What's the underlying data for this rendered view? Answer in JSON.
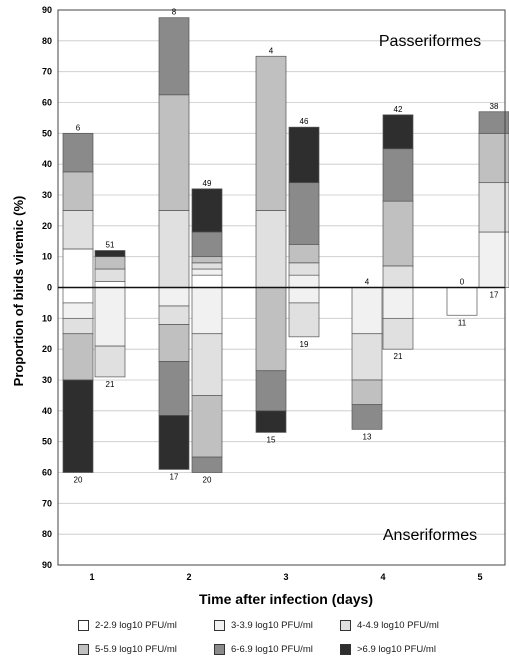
{
  "chart_data": {
    "type": "bar",
    "subtype": "stacked-diverging",
    "top_panel_label": "Passeriformes",
    "bottom_panel_label": "Anseriformes",
    "xlabel": "Time after infection (days)",
    "ylabel": "Proportion of birds viremic (%)",
    "ylim": [
      -90,
      90
    ],
    "yticks": [
      "90",
      "80",
      "70",
      "60",
      "50",
      "40",
      "30",
      "20",
      "10",
      "0",
      "10",
      "20",
      "30",
      "40",
      "50",
      "60",
      "70",
      "80",
      "90"
    ],
    "categories": [
      "1",
      "2",
      "3",
      "4",
      "5"
    ],
    "legend": [
      {
        "label": "2-2.9 log10 PFU/ml",
        "color": "#ffffff"
      },
      {
        "label": "3-3.9 log10 PFU/ml",
        "color": "#f1f1f1"
      },
      {
        "label": "4-4.9 log10 PFU/ml",
        "color": "#e0e0e0"
      },
      {
        "label": "5-5.9 log10 PFU/ml",
        "color": "#c0c0c0"
      },
      {
        "label": "6-6.9 log10 PFU/ml",
        "color": "#8a8a8a"
      },
      {
        "label": ">6.9 log10 PFU/ml",
        "color": "#2e2e2e"
      }
    ],
    "bars": [
      {
        "day": "1",
        "n_top": "6",
        "n_bottom": "20",
        "top": [
          12.5,
          0,
          12.5,
          12.5,
          12.5,
          0
        ],
        "bottom": [
          5,
          5,
          5,
          15,
          0,
          30
        ]
      },
      {
        "day": "1",
        "n_top": "51",
        "n_bottom": "21",
        "top": [
          2,
          0,
          4,
          4,
          0,
          2
        ],
        "bottom": [
          0,
          19,
          10,
          0,
          0,
          0
        ]
      },
      {
        "day": "2",
        "n_top": "8",
        "n_bottom": "17",
        "top": [
          0,
          0,
          25,
          37.5,
          25,
          0
        ],
        "bottom": [
          0,
          6,
          6,
          12,
          17.5,
          17.5
        ]
      },
      {
        "day": "2",
        "n_top": "49",
        "n_bottom": "20",
        "top": [
          4,
          2,
          2,
          2,
          8,
          14
        ],
        "bottom": [
          0,
          15,
          20,
          20,
          5,
          0
        ]
      },
      {
        "day": "3",
        "n_top": "4",
        "n_bottom": "15",
        "top": [
          0,
          0,
          25,
          50,
          0,
          0
        ],
        "bottom": [
          0,
          0,
          0,
          27,
          13,
          7
        ]
      },
      {
        "day": "3",
        "n_top": "46",
        "n_bottom": "19",
        "top": [
          0,
          4,
          4,
          6,
          20,
          18
        ],
        "bottom": [
          0,
          5,
          11,
          0,
          0,
          0
        ]
      },
      {
        "day": "4",
        "n_top": "4",
        "n_bottom": "13",
        "top": [
          0,
          0,
          0,
          0,
          0,
          0
        ],
        "bottom": [
          0,
          15,
          15,
          8,
          8,
          0
        ]
      },
      {
        "day": "4",
        "n_top": "42",
        "n_bottom": "21",
        "top": [
          0,
          0,
          7,
          21,
          17,
          11
        ],
        "bottom": [
          0,
          10,
          10,
          0,
          0,
          0
        ]
      },
      {
        "day": "5",
        "n_top": "0",
        "n_bottom": "11",
        "top": [
          0,
          0,
          0,
          0,
          0,
          0
        ],
        "bottom": [
          9,
          0,
          0,
          0,
          0,
          0
        ]
      },
      {
        "day": "5",
        "n_top": "38",
        "n_bottom": "17",
        "top": [
          0,
          18,
          16,
          16,
          7,
          0
        ],
        "bottom": [
          0,
          0,
          0,
          0,
          0,
          0
        ]
      }
    ],
    "grid": true
  }
}
